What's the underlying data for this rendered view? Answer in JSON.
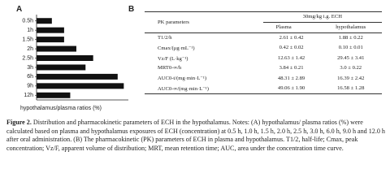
{
  "chart_data": {
    "type": "hbar",
    "xlabel": "hypothalamus/plasma ratios (%)",
    "categories": [
      "0.5h",
      "1h",
      "1.5h",
      "2h",
      "2.5h",
      "3h",
      "6h",
      "9h",
      "12h"
    ],
    "values": [
      10,
      18,
      18,
      26,
      37,
      32,
      53,
      57,
      22
    ],
    "color": "#111111",
    "xlim": [
      0,
      60
    ]
  },
  "panel_labels": [
    "A",
    "B"
  ],
  "table": {
    "header": [
      "PK parameters",
      "30mg/kg i.g. ECH"
    ],
    "subheader": [
      "Plasma",
      "hypothalamus"
    ],
    "rows": [
      [
        "T1/2/h",
        "2.61 ± 0.42",
        "1.88 ± 0.22"
      ],
      [
        "Cmax/(μg·mL⁻¹)",
        "0.42 ± 0.02",
        "0.10 ± 0.01"
      ],
      [
        "Vz/F (L·kg⁻¹)",
        "12.63 ± 1.42",
        "29.45 ± 3.41"
      ],
      [
        "MRT0-∞/h",
        "3.84 ± 0.21",
        "3.0 ± 0.22"
      ],
      [
        "AUC0-t/(mg·min·L⁻¹)",
        "48.31 ± 2.89",
        "16.39 ± 2.42"
      ],
      [
        "AUC0-∞/(mg·min·L⁻¹)",
        "49.06 ± 1.90",
        "16.58 ± 1.28"
      ]
    ]
  },
  "caption": {
    "label": "Figure 2.",
    "text": "Distribution and pharmacokinetic parameters of ECH in the hypothalamus. Notes: (A) hypothalamus/ plasma ratios (%) were calculated based on plasma and hypothalamus exposures of ECH (concentration) at 0.5 h, 1.0 h, 1.5 h, 2.0 h, 2.5 h, 3.0 h, 6.0 h, 9.0 h and 12.0 h after oral administration. (B) The pharmacokinetic (PK) parameters of ECH in plasma and hypothalamus. T1/2, half-life; Cmax, peak concentration; Vz/F, apparent volume of distribution; MRT, mean retention time; AUC, area under the concentration time curve."
  }
}
